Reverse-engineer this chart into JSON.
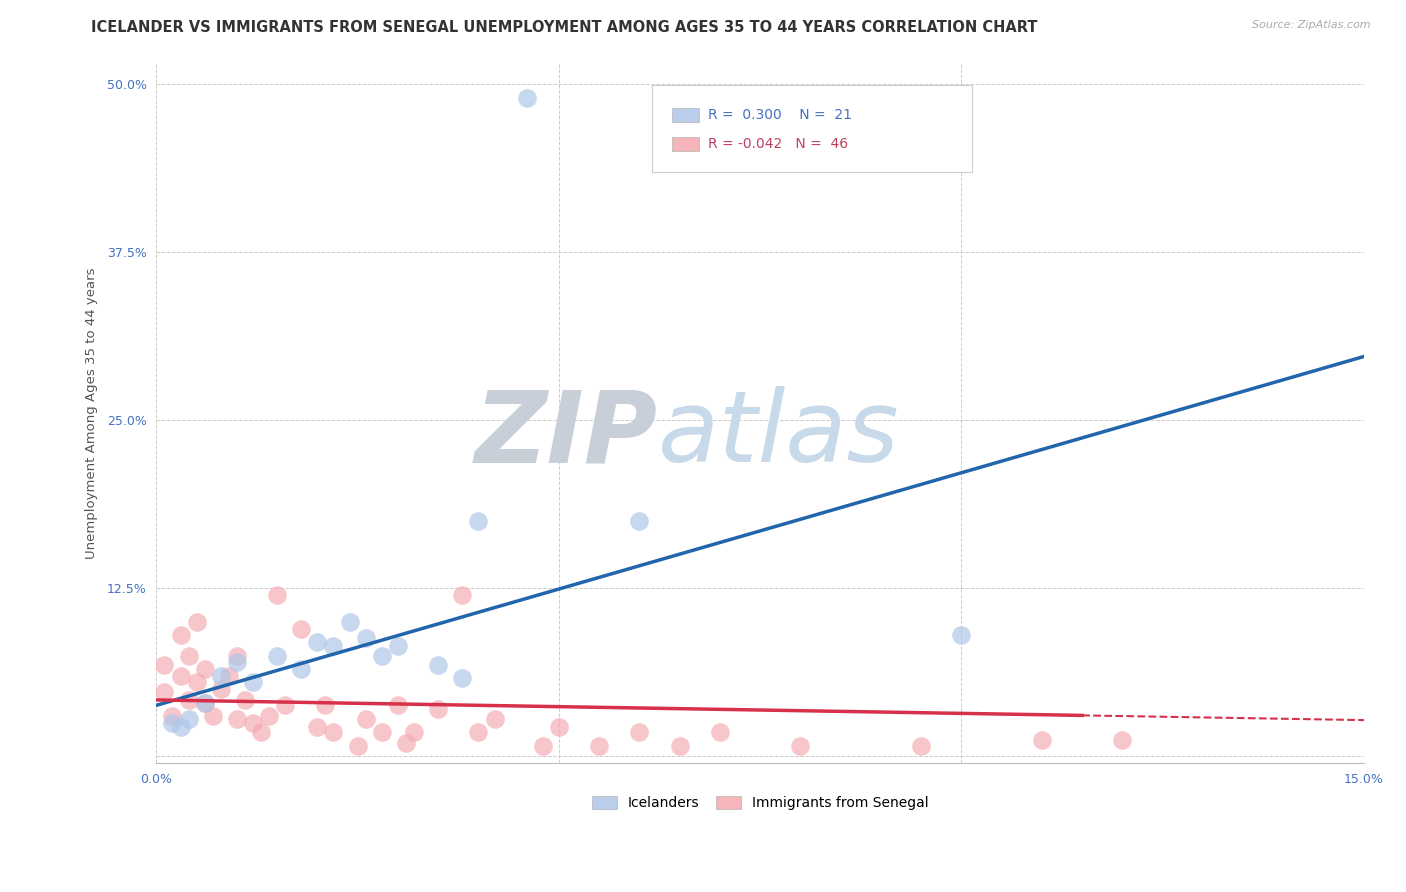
{
  "title": "ICELANDER VS IMMIGRANTS FROM SENEGAL UNEMPLOYMENT AMONG AGES 35 TO 44 YEARS CORRELATION CHART",
  "source": "Source: ZipAtlas.com",
  "ylabel": "Unemployment Among Ages 35 to 44 years",
  "xlim": [
    0.0,
    0.15
  ],
  "ylim": [
    -0.005,
    0.515
  ],
  "xtick_vals": [
    0.0,
    0.05,
    0.1,
    0.15
  ],
  "xtick_labels": [
    "0.0%",
    "",
    "",
    "15.0%"
  ],
  "ytick_vals": [
    0.0,
    0.125,
    0.25,
    0.375,
    0.5
  ],
  "ytick_labels": [
    "",
    "12.5%",
    "25.0%",
    "37.5%",
    "50.0%"
  ],
  "grid_color": "#cccccc",
  "blue_scatter_color": "#aec6e8",
  "pink_scatter_color": "#f4a8b0",
  "blue_line_color": "#2166ac",
  "pink_line_color": "#d6304a",
  "R_blue": 0.3,
  "N_blue": 21,
  "R_pink": -0.042,
  "N_pink": 46,
  "icelanders_x": [
    0.002,
    0.003,
    0.004,
    0.006,
    0.008,
    0.01,
    0.012,
    0.015,
    0.018,
    0.02,
    0.022,
    0.024,
    0.026,
    0.028,
    0.03,
    0.035,
    0.038,
    0.04,
    0.046,
    0.06,
    0.1
  ],
  "icelanders_y": [
    0.025,
    0.022,
    0.028,
    0.04,
    0.06,
    0.07,
    0.055,
    0.075,
    0.065,
    0.085,
    0.082,
    0.1,
    0.088,
    0.075,
    0.082,
    0.068,
    0.058,
    0.175,
    0.49,
    0.175,
    0.09
  ],
  "senegal_x": [
    0.001,
    0.001,
    0.002,
    0.003,
    0.003,
    0.004,
    0.004,
    0.005,
    0.005,
    0.006,
    0.006,
    0.007,
    0.008,
    0.009,
    0.01,
    0.01,
    0.011,
    0.012,
    0.013,
    0.014,
    0.015,
    0.016,
    0.018,
    0.02,
    0.021,
    0.022,
    0.025,
    0.026,
    0.028,
    0.03,
    0.031,
    0.032,
    0.035,
    0.038,
    0.04,
    0.042,
    0.048,
    0.05,
    0.055,
    0.06,
    0.065,
    0.07,
    0.08,
    0.095,
    0.11,
    0.12
  ],
  "senegal_y": [
    0.048,
    0.068,
    0.03,
    0.06,
    0.09,
    0.042,
    0.075,
    0.1,
    0.055,
    0.04,
    0.065,
    0.03,
    0.05,
    0.06,
    0.075,
    0.028,
    0.042,
    0.025,
    0.018,
    0.03,
    0.12,
    0.038,
    0.095,
    0.022,
    0.038,
    0.018,
    0.008,
    0.028,
    0.018,
    0.038,
    0.01,
    0.018,
    0.035,
    0.12,
    0.018,
    0.028,
    0.008,
    0.022,
    0.008,
    0.018,
    0.008,
    0.018,
    0.008,
    0.008,
    0.012,
    0.012
  ],
  "watermark_text": "ZIPatlas",
  "watermark_color": "#d0d8ea",
  "legend_blue_label": "Icelanders",
  "legend_pink_label": "Immigrants from Senegal",
  "title_fontsize": 10.5,
  "tick_fontsize": 9,
  "legend_fontsize": 10,
  "blue_line_intercept": 0.038,
  "blue_line_slope": 1.73,
  "pink_line_intercept": 0.042,
  "pink_line_slope": -0.1
}
